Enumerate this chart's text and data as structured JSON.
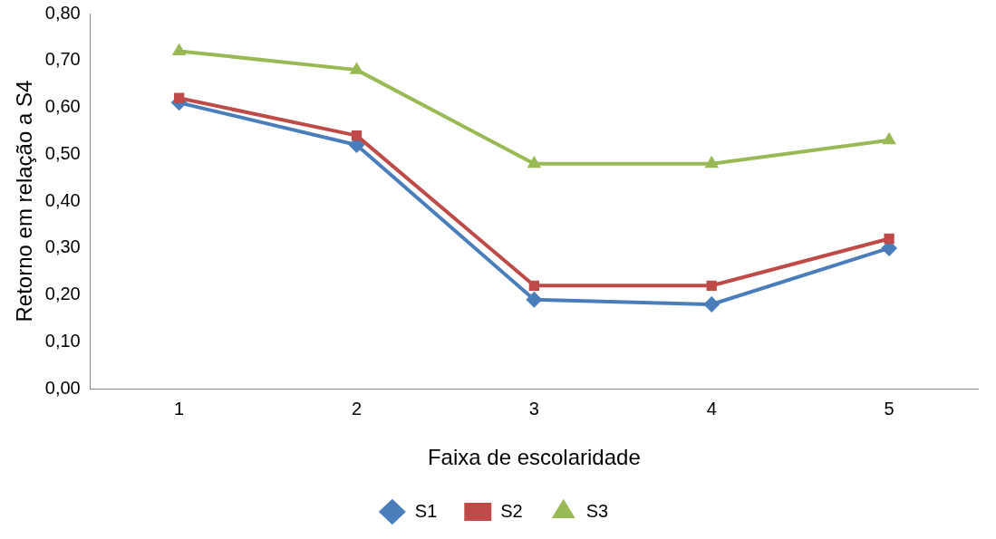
{
  "chart_data": {
    "type": "line",
    "xlabel": "Faixa de escolaridade",
    "ylabel": "Retorno em relação a S4",
    "categories": [
      "1",
      "2",
      "3",
      "4",
      "5"
    ],
    "series": [
      {
        "name": "S1",
        "color": "#4a7ebb",
        "marker": "diamond",
        "values": [
          0.61,
          0.52,
          0.19,
          0.18,
          0.3
        ]
      },
      {
        "name": "S2",
        "color": "#be4b48",
        "marker": "square",
        "values": [
          0.62,
          0.54,
          0.22,
          0.22,
          0.32
        ]
      },
      {
        "name": "S3",
        "color": "#98b954",
        "marker": "triangle",
        "values": [
          0.72,
          0.68,
          0.48,
          0.48,
          0.53
        ]
      }
    ],
    "ylim": [
      0,
      0.8
    ],
    "yticks": [
      {
        "value": 0,
        "label": "0,00"
      },
      {
        "value": 0.1,
        "label": "0,10"
      },
      {
        "value": 0.2,
        "label": "0,20"
      },
      {
        "value": 0.3,
        "label": "0,30"
      },
      {
        "value": 0.4,
        "label": "0,40"
      },
      {
        "value": 0.5,
        "label": "0,50"
      },
      {
        "value": 0.6,
        "label": "0,60"
      },
      {
        "value": 0.7,
        "label": "0,70"
      },
      {
        "value": 0.8,
        "label": "0,80"
      }
    ],
    "grid": false,
    "legend": "bottom",
    "line_style": "solid"
  }
}
